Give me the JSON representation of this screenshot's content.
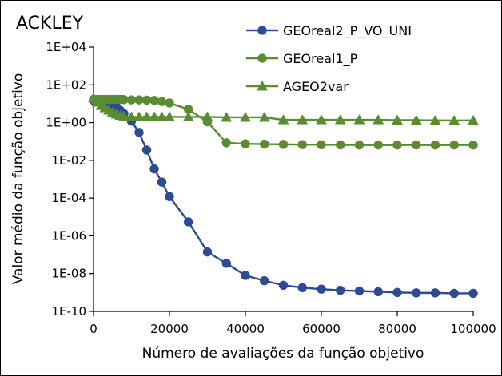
{
  "chart_data": {
    "type": "line",
    "title": "ACKLEY",
    "xlabel": "Número de avaliações da função objetivo",
    "ylabel": "Valor médio da função objetivo",
    "yscale": "log",
    "xlim": [
      0,
      100000
    ],
    "ylim": [
      1e-10,
      10000
    ],
    "x_ticks": [
      "0",
      "20000",
      "40000",
      "60000",
      "80000",
      "100000"
    ],
    "y_ticks": [
      "1E-10",
      "1E-08",
      "1E-06",
      "1E-04",
      "1E-02",
      "1E+00",
      "1E+02",
      "1E+04"
    ],
    "grid": false,
    "legend_position": "top-right",
    "series": [
      {
        "name": "GEOreal2_P_VO_UNI",
        "color": "#2e4a93",
        "marker": "circle",
        "points": [
          [
            0,
            15
          ],
          [
            1000,
            14
          ],
          [
            2000,
            13
          ],
          [
            3000,
            12
          ],
          [
            4000,
            11
          ],
          [
            5000,
            9
          ],
          [
            6000,
            7
          ],
          [
            7000,
            4.5
          ],
          [
            8000,
            3
          ],
          [
            10000,
            1.2
          ],
          [
            12000,
            0.3
          ],
          [
            14000,
            0.035
          ],
          [
            16000,
            0.0035
          ],
          [
            18000,
            0.0007
          ],
          [
            20000,
            0.00012
          ],
          [
            25000,
            5.5e-06
          ],
          [
            30000,
            1.4e-07
          ],
          [
            35000,
            3.5e-08
          ],
          [
            40000,
            8e-09
          ],
          [
            45000,
            4.2e-09
          ],
          [
            50000,
            2.4e-09
          ],
          [
            55000,
            1.8e-09
          ],
          [
            60000,
            1.5e-09
          ],
          [
            65000,
            1.3e-09
          ],
          [
            70000,
            1.2e-09
          ],
          [
            75000,
            1.1e-09
          ],
          [
            80000,
            1e-09
          ],
          [
            85000,
            9.5e-10
          ],
          [
            90000,
            9.5e-10
          ],
          [
            95000,
            9e-10
          ],
          [
            100000,
            9e-10
          ]
        ]
      },
      {
        "name": "GEOreal1_P",
        "color": "#5b8c32",
        "marker": "circle",
        "points": [
          [
            0,
            17
          ],
          [
            1000,
            17
          ],
          [
            2000,
            17
          ],
          [
            3000,
            17
          ],
          [
            4000,
            17
          ],
          [
            5000,
            17
          ],
          [
            6000,
            17
          ],
          [
            7000,
            17
          ],
          [
            8000,
            16.5
          ],
          [
            10000,
            16
          ],
          [
            12000,
            16
          ],
          [
            14000,
            15.5
          ],
          [
            16000,
            15
          ],
          [
            18000,
            13
          ],
          [
            20000,
            11
          ],
          [
            25000,
            5
          ],
          [
            30000,
            1.1
          ],
          [
            35000,
            0.085
          ],
          [
            40000,
            0.075
          ],
          [
            45000,
            0.072
          ],
          [
            50000,
            0.07
          ],
          [
            55000,
            0.068
          ],
          [
            60000,
            0.067
          ],
          [
            65000,
            0.066
          ],
          [
            70000,
            0.065
          ],
          [
            75000,
            0.065
          ],
          [
            80000,
            0.065
          ],
          [
            85000,
            0.065
          ],
          [
            90000,
            0.065
          ],
          [
            95000,
            0.065
          ],
          [
            100000,
            0.065
          ]
        ]
      },
      {
        "name": "AGEO2var",
        "color": "#5b8c32",
        "marker": "triangle",
        "points": [
          [
            0,
            20
          ],
          [
            1000,
            12
          ],
          [
            2000,
            8
          ],
          [
            3000,
            6
          ],
          [
            4000,
            4.5
          ],
          [
            5000,
            3.5
          ],
          [
            6000,
            2.8
          ],
          [
            7000,
            2.4
          ],
          [
            8000,
            2.1
          ],
          [
            10000,
            2
          ],
          [
            12000,
            2
          ],
          [
            14000,
            2
          ],
          [
            16000,
            2
          ],
          [
            18000,
            2
          ],
          [
            20000,
            2
          ],
          [
            25000,
            2
          ],
          [
            30000,
            2
          ],
          [
            35000,
            1.9
          ],
          [
            40000,
            1.9
          ],
          [
            45000,
            1.9
          ],
          [
            50000,
            1.4
          ],
          [
            55000,
            1.4
          ],
          [
            60000,
            1.4
          ],
          [
            65000,
            1.4
          ],
          [
            70000,
            1.4
          ],
          [
            75000,
            1.4
          ],
          [
            80000,
            1.35
          ],
          [
            85000,
            1.35
          ],
          [
            90000,
            1.3
          ],
          [
            95000,
            1.3
          ],
          [
            100000,
            1.3
          ]
        ]
      }
    ]
  }
}
